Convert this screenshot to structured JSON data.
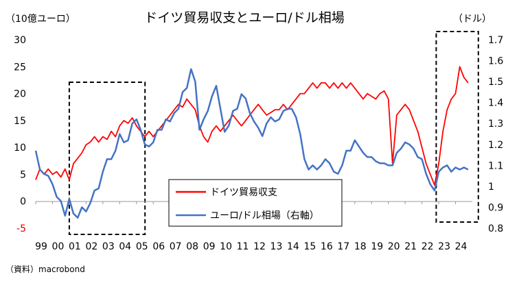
{
  "chart_data": {
    "type": "line",
    "title": "ドイツ貿易収支とユーロ/ドル相場",
    "left_unit": "（10億ユーロ）",
    "right_unit": "（ドル）",
    "source": "（資料）macrobond",
    "x_labels": [
      "99",
      "00",
      "01",
      "02",
      "03",
      "04",
      "05",
      "06",
      "07",
      "08",
      "09",
      "10",
      "11",
      "12",
      "13",
      "14",
      "15",
      "16",
      "17",
      "18",
      "19",
      "20",
      "21",
      "22",
      "23",
      "24"
    ],
    "y_left": {
      "min": -5,
      "max": 30,
      "ticks": [
        "-5",
        "0",
        "5",
        "10",
        "15",
        "20",
        "25",
        "30"
      ]
    },
    "y_right": {
      "min": 0.8,
      "max": 1.7,
      "ticks": [
        "0.8",
        "0.9",
        "1",
        "1.1",
        "1.2",
        "1.3",
        "1.4",
        "1.5",
        "1.6",
        "1.7"
      ]
    },
    "legend": {
      "trade": "ドイツ貿易収支",
      "fx": "ユーロ/ドル相場（右軸）"
    },
    "highlight_ranges": [
      {
        "start": 2001.0,
        "end": 2005.1
      },
      {
        "start": 2022.85,
        "end": 2024.95
      }
    ],
    "series": [
      {
        "name": "ドイツ貿易収支",
        "axis": "left",
        "color": "#ff0000",
        "points": [
          [
            1999.0,
            4
          ],
          [
            1999.25,
            6
          ],
          [
            1999.5,
            5
          ],
          [
            1999.75,
            6
          ],
          [
            2000.0,
            5
          ],
          [
            2000.25,
            5.5
          ],
          [
            2000.5,
            4.5
          ],
          [
            2000.75,
            6
          ],
          [
            2001.0,
            4
          ],
          [
            2001.25,
            7
          ],
          [
            2001.5,
            8
          ],
          [
            2001.75,
            9
          ],
          [
            2002.0,
            10.5
          ],
          [
            2002.25,
            11
          ],
          [
            2002.5,
            12
          ],
          [
            2002.75,
            11
          ],
          [
            2003.0,
            12
          ],
          [
            2003.25,
            11.5
          ],
          [
            2003.5,
            13
          ],
          [
            2003.75,
            12
          ],
          [
            2004.0,
            14
          ],
          [
            2004.25,
            15
          ],
          [
            2004.5,
            14.5
          ],
          [
            2004.75,
            15.5
          ],
          [
            2005.0,
            14
          ],
          [
            2005.25,
            13
          ],
          [
            2005.5,
            12
          ],
          [
            2005.75,
            13
          ],
          [
            2006.0,
            12
          ],
          [
            2006.25,
            13
          ],
          [
            2006.5,
            14
          ],
          [
            2006.75,
            15
          ],
          [
            2007.0,
            16
          ],
          [
            2007.25,
            17
          ],
          [
            2007.5,
            18
          ],
          [
            2007.75,
            17.5
          ],
          [
            2008.0,
            19
          ],
          [
            2008.25,
            18
          ],
          [
            2008.5,
            17
          ],
          [
            2008.75,
            14
          ],
          [
            2009.0,
            12
          ],
          [
            2009.25,
            11
          ],
          [
            2009.5,
            13
          ],
          [
            2009.75,
            14
          ],
          [
            2010.0,
            13
          ],
          [
            2010.25,
            14
          ],
          [
            2010.5,
            15
          ],
          [
            2010.75,
            16
          ],
          [
            2011.0,
            15
          ],
          [
            2011.25,
            14
          ],
          [
            2011.5,
            15
          ],
          [
            2011.75,
            16
          ],
          [
            2012.0,
            17
          ],
          [
            2012.25,
            18
          ],
          [
            2012.5,
            17
          ],
          [
            2012.75,
            16
          ],
          [
            2013.0,
            16.5
          ],
          [
            2013.25,
            17
          ],
          [
            2013.5,
            17
          ],
          [
            2013.75,
            18
          ],
          [
            2014.0,
            17
          ],
          [
            2014.25,
            18
          ],
          [
            2014.5,
            19
          ],
          [
            2014.75,
            20
          ],
          [
            2015.0,
            20
          ],
          [
            2015.25,
            21
          ],
          [
            2015.5,
            22
          ],
          [
            2015.75,
            21
          ],
          [
            2016.0,
            22
          ],
          [
            2016.25,
            22
          ],
          [
            2016.5,
            21
          ],
          [
            2016.75,
            22
          ],
          [
            2017.0,
            21
          ],
          [
            2017.25,
            22
          ],
          [
            2017.5,
            21
          ],
          [
            2017.75,
            22
          ],
          [
            2018.0,
            21
          ],
          [
            2018.25,
            20
          ],
          [
            2018.5,
            19
          ],
          [
            2018.75,
            20
          ],
          [
            2019.0,
            19.5
          ],
          [
            2019.25,
            19
          ],
          [
            2019.5,
            20
          ],
          [
            2019.75,
            20.5
          ],
          [
            2020.0,
            19
          ],
          [
            2020.25,
            7
          ],
          [
            2020.5,
            16
          ],
          [
            2020.75,
            17
          ],
          [
            2021.0,
            18
          ],
          [
            2021.25,
            17
          ],
          [
            2021.5,
            15
          ],
          [
            2021.75,
            13
          ],
          [
            2022.0,
            10
          ],
          [
            2022.25,
            7
          ],
          [
            2022.5,
            5
          ],
          [
            2022.75,
            3
          ],
          [
            2023.0,
            7
          ],
          [
            2023.25,
            13
          ],
          [
            2023.5,
            17
          ],
          [
            2023.75,
            19
          ],
          [
            2024.0,
            20
          ],
          [
            2024.25,
            25
          ],
          [
            2024.5,
            23
          ],
          [
            2024.75,
            22
          ]
        ]
      },
      {
        "name": "ユーロ/ドル相場（右軸）",
        "axis": "right",
        "color": "#4472c4",
        "points": [
          [
            1999.0,
            1.17
          ],
          [
            1999.25,
            1.08
          ],
          [
            1999.5,
            1.06
          ],
          [
            1999.75,
            1.05
          ],
          [
            2000.0,
            1.01
          ],
          [
            2000.25,
            0.95
          ],
          [
            2000.5,
            0.93
          ],
          [
            2000.75,
            0.86
          ],
          [
            2001.0,
            0.94
          ],
          [
            2001.25,
            0.87
          ],
          [
            2001.5,
            0.85
          ],
          [
            2001.75,
            0.9
          ],
          [
            2002.0,
            0.88
          ],
          [
            2002.25,
            0.92
          ],
          [
            2002.5,
            0.98
          ],
          [
            2002.75,
            0.99
          ],
          [
            2003.0,
            1.07
          ],
          [
            2003.25,
            1.13
          ],
          [
            2003.5,
            1.13
          ],
          [
            2003.75,
            1.17
          ],
          [
            2004.0,
            1.25
          ],
          [
            2004.25,
            1.21
          ],
          [
            2004.5,
            1.22
          ],
          [
            2004.75,
            1.3
          ],
          [
            2005.0,
            1.32
          ],
          [
            2005.25,
            1.27
          ],
          [
            2005.5,
            1.2
          ],
          [
            2005.75,
            1.19
          ],
          [
            2006.0,
            1.21
          ],
          [
            2006.25,
            1.27
          ],
          [
            2006.5,
            1.27
          ],
          [
            2006.75,
            1.32
          ],
          [
            2007.0,
            1.31
          ],
          [
            2007.25,
            1.35
          ],
          [
            2007.5,
            1.37
          ],
          [
            2007.75,
            1.45
          ],
          [
            2008.0,
            1.47
          ],
          [
            2008.25,
            1.56
          ],
          [
            2008.5,
            1.5
          ],
          [
            2008.75,
            1.27
          ],
          [
            2009.0,
            1.32
          ],
          [
            2009.25,
            1.36
          ],
          [
            2009.5,
            1.43
          ],
          [
            2009.75,
            1.48
          ],
          [
            2010.0,
            1.37
          ],
          [
            2010.25,
            1.26
          ],
          [
            2010.5,
            1.29
          ],
          [
            2010.75,
            1.36
          ],
          [
            2011.0,
            1.37
          ],
          [
            2011.25,
            1.44
          ],
          [
            2011.5,
            1.42
          ],
          [
            2011.75,
            1.35
          ],
          [
            2012.0,
            1.31
          ],
          [
            2012.25,
            1.28
          ],
          [
            2012.5,
            1.24
          ],
          [
            2012.75,
            1.3
          ],
          [
            2013.0,
            1.33
          ],
          [
            2013.25,
            1.31
          ],
          [
            2013.5,
            1.32
          ],
          [
            2013.75,
            1.36
          ],
          [
            2014.0,
            1.37
          ],
          [
            2014.25,
            1.37
          ],
          [
            2014.5,
            1.33
          ],
          [
            2014.75,
            1.25
          ],
          [
            2015.0,
            1.13
          ],
          [
            2015.25,
            1.08
          ],
          [
            2015.5,
            1.1
          ],
          [
            2015.75,
            1.08
          ],
          [
            2016.0,
            1.1
          ],
          [
            2016.25,
            1.13
          ],
          [
            2016.5,
            1.11
          ],
          [
            2016.75,
            1.07
          ],
          [
            2017.0,
            1.06
          ],
          [
            2017.25,
            1.1
          ],
          [
            2017.5,
            1.17
          ],
          [
            2017.75,
            1.17
          ],
          [
            2018.0,
            1.22
          ],
          [
            2018.25,
            1.19
          ],
          [
            2018.5,
            1.16
          ],
          [
            2018.75,
            1.14
          ],
          [
            2019.0,
            1.14
          ],
          [
            2019.25,
            1.12
          ],
          [
            2019.5,
            1.11
          ],
          [
            2019.75,
            1.11
          ],
          [
            2020.0,
            1.1
          ],
          [
            2020.25,
            1.1
          ],
          [
            2020.5,
            1.16
          ],
          [
            2020.75,
            1.18
          ],
          [
            2021.0,
            1.21
          ],
          [
            2021.25,
            1.2
          ],
          [
            2021.5,
            1.18
          ],
          [
            2021.75,
            1.14
          ],
          [
            2022.0,
            1.13
          ],
          [
            2022.25,
            1.06
          ],
          [
            2022.5,
            1.01
          ],
          [
            2022.75,
            0.98
          ],
          [
            2023.0,
            1.07
          ],
          [
            2023.25,
            1.09
          ],
          [
            2023.5,
            1.1
          ],
          [
            2023.75,
            1.07
          ],
          [
            2024.0,
            1.09
          ],
          [
            2024.25,
            1.08
          ],
          [
            2024.5,
            1.09
          ],
          [
            2024.75,
            1.08
          ]
        ]
      }
    ]
  }
}
